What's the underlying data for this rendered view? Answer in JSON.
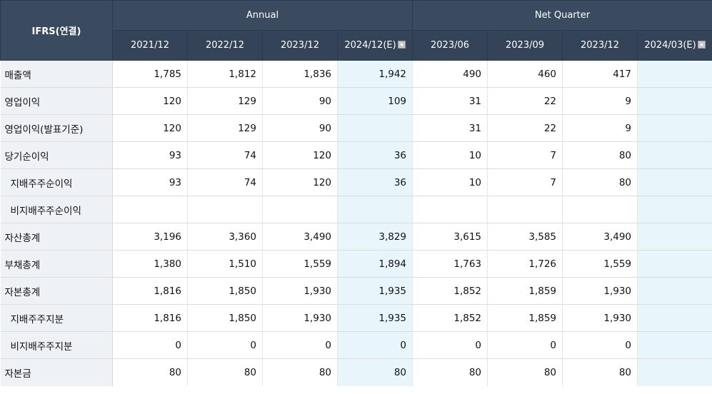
{
  "header": {
    "corner": "IFRS(연결)",
    "groups": [
      {
        "label": "Annual"
      },
      {
        "label": "Net Quarter"
      }
    ],
    "columns": [
      "2021/12",
      "2022/12",
      "2023/12",
      "2024/12(E)",
      "2023/06",
      "2023/09",
      "2023/12",
      "2024/03(E)"
    ]
  },
  "rows": [
    {
      "label": "매출액",
      "values": [
        "1,785",
        "1,812",
        "1,836",
        "1,942",
        "490",
        "460",
        "417",
        ""
      ]
    },
    {
      "label": "영업이익",
      "values": [
        "120",
        "129",
        "90",
        "109",
        "31",
        "22",
        "9",
        ""
      ]
    },
    {
      "label": "영업이익(발표기준)",
      "values": [
        "120",
        "129",
        "90",
        "",
        "31",
        "22",
        "9",
        ""
      ]
    },
    {
      "label": "당기순이익",
      "values": [
        "93",
        "74",
        "120",
        "36",
        "10",
        "7",
        "80",
        ""
      ]
    },
    {
      "label": "지배주주순이익",
      "values": [
        "93",
        "74",
        "120",
        "36",
        "10",
        "7",
        "80",
        ""
      ]
    },
    {
      "label": "비지배주주순이익",
      "values": [
        "",
        "",
        "",
        "",
        "",
        "",
        "",
        ""
      ]
    },
    {
      "label": "자산총계",
      "values": [
        "3,196",
        "3,360",
        "3,490",
        "3,829",
        "3,615",
        "3,585",
        "3,490",
        ""
      ]
    },
    {
      "label": "부채총계",
      "values": [
        "1,380",
        "1,510",
        "1,559",
        "1,894",
        "1,763",
        "1,726",
        "1,559",
        ""
      ]
    },
    {
      "label": "자본총계",
      "values": [
        "1,816",
        "1,850",
        "1,930",
        "1,935",
        "1,852",
        "1,859",
        "1,930",
        ""
      ]
    },
    {
      "label": "지배주주지분",
      "values": [
        "1,816",
        "1,850",
        "1,930",
        "1,935",
        "1,852",
        "1,859",
        "1,930",
        ""
      ]
    },
    {
      "label": "비지배주주지분",
      "values": [
        "0",
        "0",
        "0",
        "0",
        "0",
        "0",
        "0",
        ""
      ]
    },
    {
      "label": "자본금",
      "values": [
        "80",
        "80",
        "80",
        "80",
        "80",
        "80",
        "80",
        ""
      ]
    }
  ],
  "icons": {
    "estimate": "estimate-info-icon"
  },
  "colors": {
    "header_bg": "#3a4a5f",
    "label_bg": "#eef1f6",
    "estimate_bg": "#e8f5fa"
  }
}
